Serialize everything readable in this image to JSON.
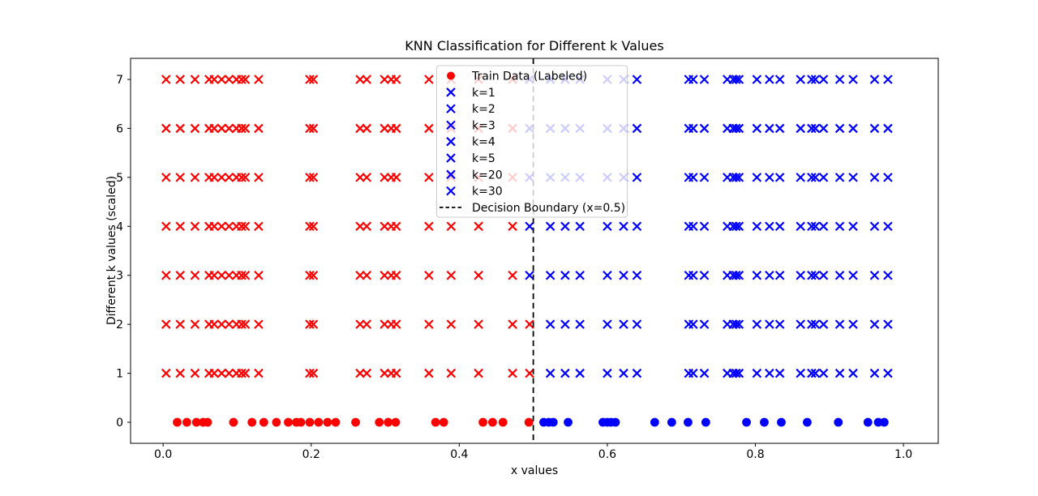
{
  "chart_data": {
    "type": "scatter",
    "title": "KNN Classification for Different k Values",
    "xlabel": "x values",
    "ylabel": "Different k values (scaled)",
    "xlim": [
      -0.044,
      1.047
    ],
    "ylim": [
      -0.43,
      7.43
    ],
    "grid": false,
    "x_ticks": [
      {
        "value": 0.0,
        "label": "0.0"
      },
      {
        "value": 0.2,
        "label": "0.2"
      },
      {
        "value": 0.4,
        "label": "0.4"
      },
      {
        "value": 0.6,
        "label": "0.6"
      },
      {
        "value": 0.8,
        "label": "0.8"
      },
      {
        "value": 1.0,
        "label": "1.0"
      }
    ],
    "y_ticks": [
      {
        "value": 0,
        "label": "0"
      },
      {
        "value": 1,
        "label": "1"
      },
      {
        "value": 2,
        "label": "2"
      },
      {
        "value": 3,
        "label": "3"
      },
      {
        "value": 4,
        "label": "4"
      },
      {
        "value": 5,
        "label": "5"
      },
      {
        "value": 6,
        "label": "6"
      },
      {
        "value": 7,
        "label": "7"
      }
    ],
    "colors": {
      "red": "#ff0000",
      "blue": "#0000ff",
      "boundary_line": "#000000",
      "legend_border": "#cccccc",
      "legend_fill": "rgba(255,255,255,0.8)"
    },
    "decision_boundary": {
      "x": 0.5,
      "label": "Decision Boundary (x=0.5)"
    },
    "train_data": {
      "label": "Train Data (Labeled)",
      "y": 0,
      "red_x": [
        0.019,
        0.032,
        0.045,
        0.054,
        0.06,
        0.095,
        0.12,
        0.136,
        0.153,
        0.169,
        0.18,
        0.186,
        0.198,
        0.21,
        0.222,
        0.233,
        0.26,
        0.292,
        0.304,
        0.314,
        0.368,
        0.379,
        0.432,
        0.445,
        0.459,
        0.494
      ],
      "blue_x": [
        0.514,
        0.521,
        0.527,
        0.547,
        0.594,
        0.6,
        0.605,
        0.611,
        0.664,
        0.687,
        0.709,
        0.733,
        0.788,
        0.812,
        0.835,
        0.87,
        0.912,
        0.952,
        0.966,
        0.974
      ]
    },
    "test_points": {
      "left_x_predicted_red": [
        0.004,
        0.023,
        0.043,
        0.062,
        0.069,
        0.079,
        0.089,
        0.099,
        0.106,
        0.111,
        0.129,
        0.198,
        0.203,
        0.266,
        0.275,
        0.299,
        0.308,
        0.315,
        0.359,
        0.389,
        0.426,
        0.472
      ],
      "right_x_predicted_blue": [
        0.523,
        0.543,
        0.563,
        0.6,
        0.622,
        0.64,
        0.71,
        0.716,
        0.731,
        0.762,
        0.77,
        0.774,
        0.778,
        0.802,
        0.819,
        0.833,
        0.861,
        0.876,
        0.881,
        0.892,
        0.914,
        0.932,
        0.961,
        0.979
      ],
      "boundary_x": 0.495
    },
    "k_rows": [
      {
        "label": "k=1",
        "y": 1,
        "boundary_point_class": "red"
      },
      {
        "label": "k=2",
        "y": 2,
        "boundary_point_class": "red"
      },
      {
        "label": "k=3",
        "y": 3,
        "boundary_point_class": "blue"
      },
      {
        "label": "k=4",
        "y": 4,
        "boundary_point_class": "blue"
      },
      {
        "label": "k=5",
        "y": 5,
        "boundary_point_class": "blue"
      },
      {
        "label": "k=20",
        "y": 6,
        "boundary_point_class": "blue"
      },
      {
        "label": "k=30",
        "y": 7,
        "boundary_point_class": "blue"
      }
    ],
    "legend": {
      "position": "upper center",
      "entries": [
        {
          "label": "Train Data (Labeled)",
          "marker": "circle",
          "color": "#ff0000"
        },
        {
          "label": "k=1",
          "marker": "x",
          "color": "#0000ff"
        },
        {
          "label": "k=2",
          "marker": "x",
          "color": "#0000ff"
        },
        {
          "label": "k=3",
          "marker": "x",
          "color": "#0000ff"
        },
        {
          "label": "k=4",
          "marker": "x",
          "color": "#0000ff"
        },
        {
          "label": "k=5",
          "marker": "x",
          "color": "#0000ff"
        },
        {
          "label": "k=20",
          "marker": "x",
          "color": "#0000ff"
        },
        {
          "label": "k=30",
          "marker": "x",
          "color": "#0000ff"
        },
        {
          "label": "Decision Boundary (x=0.5)",
          "marker": "dashed-line",
          "color": "#000000"
        }
      ]
    }
  }
}
